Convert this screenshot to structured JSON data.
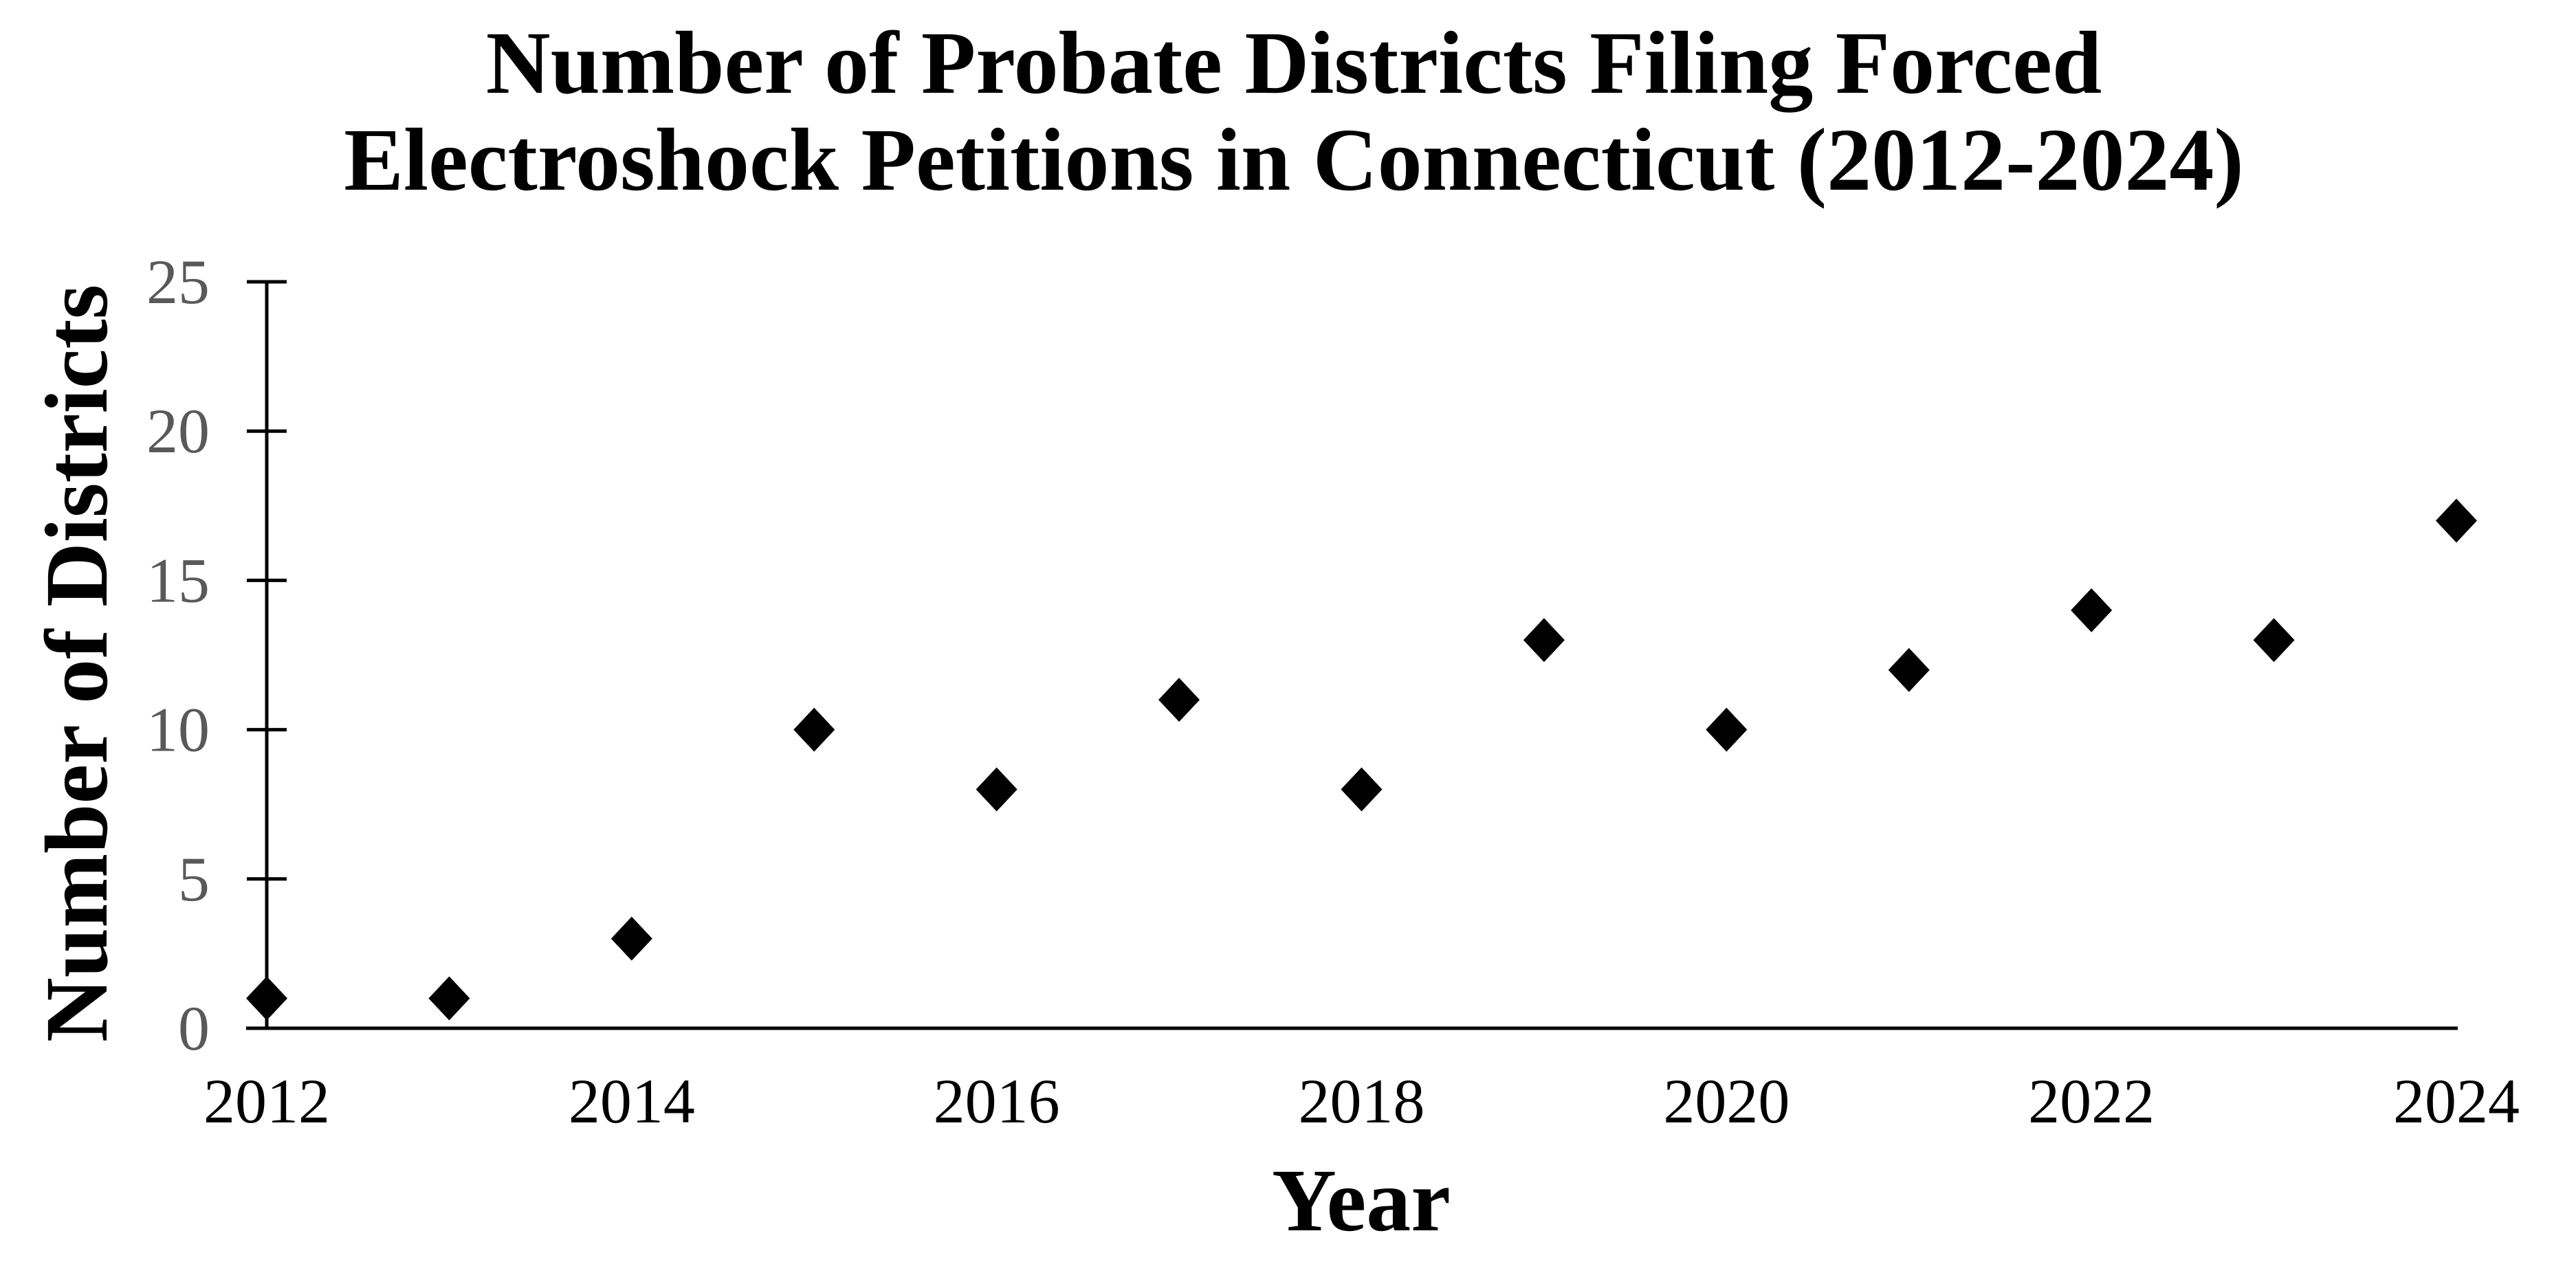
{
  "chart_data": {
    "type": "scatter",
    "title": "Number of Probate Districts Filing Forced Electroshock Petitions in Connecticut (2012-2024)",
    "title_lines": [
      "Number of Probate Districts Filing Forced",
      "Electroshock Petitions in Connecticut (2012-2024)"
    ],
    "xlabel": "Year",
    "ylabel": "Number of Districts",
    "x": [
      2012,
      2013,
      2014,
      2015,
      2016,
      2017,
      2018,
      2019,
      2020,
      2021,
      2022,
      2023,
      2024
    ],
    "values": [
      1,
      1,
      3,
      10,
      8,
      11,
      8,
      13,
      10,
      12,
      14,
      13,
      17
    ],
    "xlim": [
      2012,
      2024
    ],
    "ylim": [
      0,
      25
    ],
    "y_ticks": [
      0,
      5,
      10,
      15,
      20,
      25
    ],
    "y_tick_labels": [
      "0",
      "5",
      "10",
      "15",
      "20",
      "25"
    ],
    "x_ticks": [
      2012,
      2014,
      2016,
      2018,
      2020,
      2022,
      2024
    ],
    "x_tick_labels": [
      "2012",
      "2014",
      "2016",
      "2018",
      "2020",
      "2022",
      "2024"
    ],
    "marker": "diamond",
    "grid": "off",
    "legend": "none",
    "colors": {
      "marker": "#000000",
      "axis": "#000000",
      "title": "#000000",
      "x_tick_labels": "#000000",
      "y_tick_labels": "#595959",
      "background": "#ffffff"
    }
  }
}
